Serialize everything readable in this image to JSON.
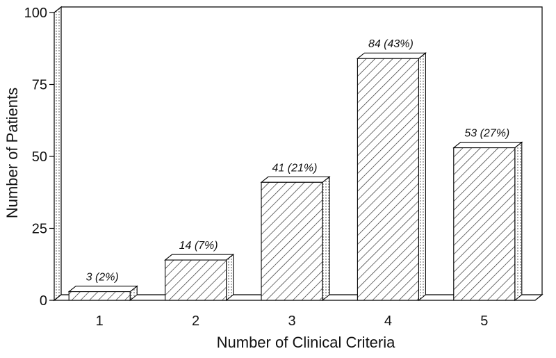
{
  "chart_data": {
    "type": "bar",
    "style": "3d-hatched",
    "categories": [
      "1",
      "2",
      "3",
      "4",
      "5"
    ],
    "values": [
      3,
      14,
      41,
      84,
      53
    ],
    "data_labels": [
      "3 (2%)",
      "14 (7%)",
      "41 (21%)",
      "84 (43%)",
      "53 (27%)"
    ],
    "title": "",
    "xlabel": "Number of Clinical Criteria",
    "ylabel": "Number of Patients",
    "ylim": [
      0,
      100
    ],
    "yticks": [
      "0",
      "25",
      "50",
      "75",
      "100"
    ],
    "grid": false,
    "legend": "none"
  }
}
